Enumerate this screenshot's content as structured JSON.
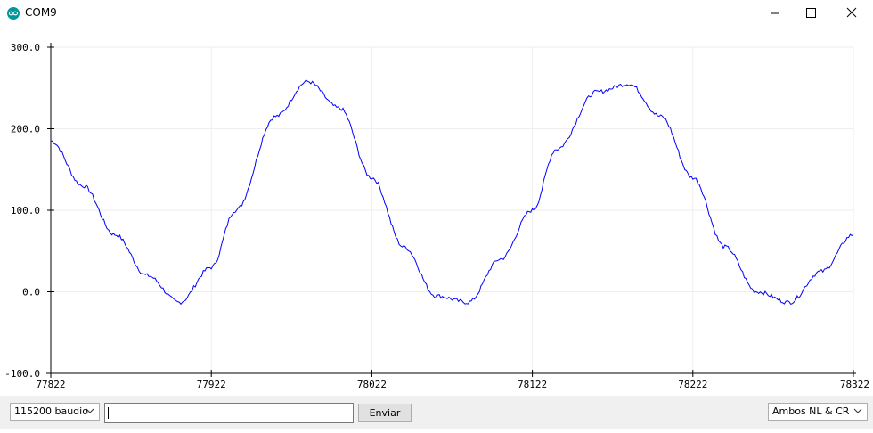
{
  "window": {
    "title": "COM9",
    "app_icon": "arduino-infinity-icon",
    "controls": [
      "minimize-icon",
      "maximize-icon",
      "close-icon"
    ]
  },
  "chart_data": {
    "type": "line",
    "title": "",
    "xlabel": "",
    "ylabel": "",
    "xlim": [
      77822,
      78322
    ],
    "ylim": [
      -100,
      300
    ],
    "grid": true,
    "x_ticks": [
      "77822",
      "77922",
      "78022",
      "78122",
      "78222",
      "78322"
    ],
    "y_ticks": [
      "300.0",
      "200.0",
      "100.0",
      "0.0",
      "-100.0"
    ],
    "series": [
      {
        "color": "#0000ff",
        "x": [
          77822,
          77842,
          77862,
          77882,
          77902,
          77922,
          77937,
          77962,
          77982,
          78002,
          78022,
          78042,
          78062,
          78082,
          78102,
          78122,
          78137,
          78162,
          78182,
          78202,
          78222,
          78242,
          78262,
          78282,
          78302,
          78322
        ],
        "values": [
          185,
          130,
          70,
          20,
          -13,
          30,
          100,
          215,
          258,
          225,
          140,
          55,
          -5,
          -13,
          40,
          100,
          175,
          245,
          255,
          215,
          140,
          55,
          0,
          -13,
          25,
          70
        ]
      }
    ]
  },
  "bottom": {
    "baud_select": "115200 baudio",
    "send_input_value": "",
    "send_button": "Enviar",
    "line_ending_select": "Ambos NL & CR"
  },
  "colors": {
    "line": "#0000ff",
    "grid": "#eeeeee",
    "bar_background": "#f0f0f0"
  }
}
